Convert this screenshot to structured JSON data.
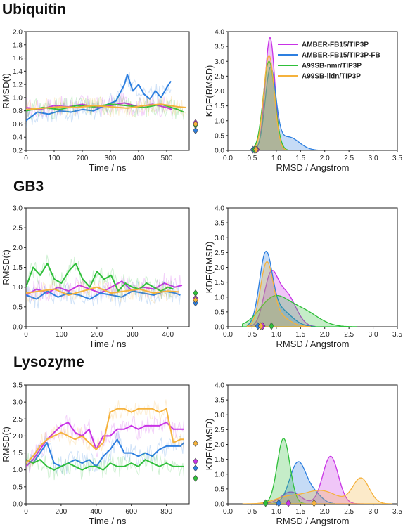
{
  "colors": {
    "AMBER-FB15/TIP3P": "#c832e6",
    "AMBER-FB15/TIP3P-FB": "#2d7fe0",
    "A99SB-nmr/TIP3P": "#2fbf3a",
    "A99SB-ildn/TIP3P": "#f5b23c"
  },
  "legend": {
    "placement": "top-right of first KDE panel",
    "entries": [
      "AMBER-FB15/TIP3P",
      "AMBER-FB15/TIP3P-FB",
      "A99SB-nmr/TIP3P",
      "A99SB-ildn/TIP3P"
    ]
  },
  "chart_data": [
    {
      "type": "line",
      "title": "Ubiquitin",
      "xlabel": "Time / ns",
      "ylabel": "RMSD(t)",
      "xlim": [
        0,
        580
      ],
      "ylim": [
        0.2,
        2.0
      ],
      "xticks": [
        "0",
        "100",
        "200",
        "300",
        "400",
        "500"
      ],
      "yticks": [
        "0.2",
        "0.4",
        "0.6",
        "0.8",
        "1.0",
        "1.2",
        "1.4",
        "1.6",
        "1.8",
        "2.0"
      ],
      "series": [
        {
          "name": "AMBER-FB15/TIP3P",
          "x": [
            0,
            50,
            100,
            150,
            200,
            250,
            300,
            350,
            400,
            450,
            500,
            520
          ],
          "y": [
            0.85,
            0.82,
            0.88,
            0.86,
            0.9,
            0.85,
            0.88,
            0.92,
            0.86,
            0.9,
            0.85,
            0.82
          ],
          "marker": 0.62
        },
        {
          "name": "AMBER-FB15/TIP3P-FB",
          "x": [
            0,
            40,
            80,
            120,
            160,
            200,
            240,
            280,
            320,
            350,
            360,
            380,
            400,
            420,
            440,
            460,
            480,
            500,
            515
          ],
          "y": [
            0.65,
            0.78,
            0.75,
            0.8,
            0.78,
            0.82,
            0.8,
            0.88,
            0.95,
            1.2,
            1.35,
            1.1,
            1.2,
            1.05,
            0.98,
            1.1,
            1.0,
            1.15,
            1.25
          ],
          "marker": 0.5
        },
        {
          "name": "A99SB-nmr/TIP3P",
          "x": [
            0,
            60,
            120,
            180,
            240,
            300,
            360,
            420,
            480,
            540,
            560
          ],
          "y": [
            0.8,
            0.85,
            0.82,
            0.88,
            0.86,
            0.9,
            0.88,
            0.85,
            0.9,
            0.82,
            0.78
          ],
          "marker": 0.58
        },
        {
          "name": "A99SB-ildn/TIP3P",
          "x": [
            0,
            60,
            120,
            180,
            240,
            300,
            360,
            420,
            480,
            540,
            570
          ],
          "y": [
            0.82,
            0.84,
            0.86,
            0.85,
            0.88,
            0.86,
            0.84,
            0.88,
            0.9,
            0.86,
            0.85
          ],
          "marker": 0.6
        }
      ]
    },
    {
      "type": "area",
      "xlabel": "RMSD / Angstrom",
      "ylabel": "KDE(RMSD)",
      "xlim": [
        0,
        3.5
      ],
      "ylim": [
        0,
        4.0
      ],
      "xticks": [
        "0.0",
        "0.5",
        "1.0",
        "1.5",
        "2.0",
        "2.5",
        "3.0",
        "3.5"
      ],
      "yticks": [
        "0.0",
        "0.5",
        "1.0",
        "1.5",
        "2.0",
        "2.5",
        "3.0",
        "3.5",
        "4.0"
      ],
      "series": [
        {
          "name": "AMBER-FB15/TIP3P",
          "components": [
            {
              "mu": 0.87,
              "sigma": 0.1,
              "amp": 3.8
            }
          ],
          "range": [
            0.55,
            1.25
          ],
          "marker": 0.6
        },
        {
          "name": "AMBER-FB15/TIP3P-FB",
          "components": [
            {
              "mu": 0.88,
              "sigma": 0.11,
              "amp": 2.7
            },
            {
              "mu": 1.25,
              "sigma": 0.22,
              "amp": 0.45
            }
          ],
          "range": [
            0.5,
            2.0
          ],
          "marker": 0.52
        },
        {
          "name": "A99SB-nmr/TIP3P",
          "components": [
            {
              "mu": 0.85,
              "sigma": 0.12,
              "amp": 3.0
            }
          ],
          "range": [
            0.5,
            1.3
          ],
          "marker": 0.55
        },
        {
          "name": "A99SB-ildn/TIP3P",
          "components": [
            {
              "mu": 0.85,
              "sigma": 0.11,
              "amp": 3.2
            }
          ],
          "range": [
            0.5,
            1.3
          ],
          "marker": 0.58
        }
      ]
    },
    {
      "type": "line",
      "title": "GB3",
      "xlabel": "Time / ns",
      "ylabel": "RMSD(t)",
      "xlim": [
        0,
        460
      ],
      "ylim": [
        0,
        3.0
      ],
      "xticks": [
        "0",
        "100",
        "200",
        "300",
        "400"
      ],
      "yticks": [
        "0.0",
        "0.5",
        "1.0",
        "1.5",
        "2.0",
        "2.5",
        "3.0"
      ],
      "series": [
        {
          "name": "AMBER-FB15/TIP3P",
          "x": [
            0,
            30,
            60,
            90,
            120,
            150,
            180,
            210,
            240,
            270,
            300,
            330,
            360,
            390,
            420,
            440
          ],
          "y": [
            0.8,
            0.95,
            0.85,
            1.0,
            0.9,
            1.05,
            0.95,
            0.85,
            1.0,
            1.15,
            0.9,
            1.0,
            0.95,
            1.1,
            1.0,
            1.05
          ],
          "marker": 0.72
        },
        {
          "name": "AMBER-FB15/TIP3P-FB",
          "x": [
            0,
            30,
            60,
            90,
            120,
            150,
            180,
            210,
            240,
            270,
            300,
            330,
            360,
            390,
            420,
            435
          ],
          "y": [
            0.8,
            0.7,
            0.9,
            0.75,
            0.85,
            0.8,
            0.7,
            0.85,
            0.8,
            0.75,
            0.9,
            0.85,
            0.8,
            0.9,
            0.85,
            0.8
          ],
          "marker": 0.6
        },
        {
          "name": "A99SB-nmr/TIP3P",
          "x": [
            0,
            20,
            40,
            60,
            80,
            100,
            120,
            140,
            160,
            180,
            200,
            220,
            240,
            260,
            280,
            300,
            320,
            340,
            360,
            380,
            400,
            415
          ],
          "y": [
            1.0,
            1.5,
            1.3,
            1.6,
            1.2,
            1.1,
            1.4,
            1.6,
            1.2,
            1.0,
            1.4,
            1.2,
            1.3,
            0.9,
            1.1,
            1.0,
            0.95,
            1.1,
            1.0,
            0.9,
            1.0,
            0.95
          ],
          "marker": 0.85
        },
        {
          "name": "A99SB-ildn/TIP3P",
          "x": [
            0,
            40,
            80,
            120,
            160,
            200,
            240,
            280,
            320,
            360,
            400,
            430
          ],
          "y": [
            0.85,
            0.9,
            0.95,
            0.8,
            0.9,
            1.0,
            0.85,
            0.9,
            0.95,
            0.85,
            0.9,
            0.88
          ],
          "marker": 0.68
        }
      ]
    },
    {
      "type": "area",
      "xlabel": "RMSD / Angstrom",
      "ylabel": "KDE(RMSD)",
      "xlim": [
        0,
        3.5
      ],
      "ylim": [
        0,
        4.0
      ],
      "xticks": [
        "0.0",
        "0.5",
        "1.0",
        "1.5",
        "2.0",
        "2.5",
        "3.0",
        "3.5"
      ],
      "yticks": [
        "0.0",
        "0.5",
        "1.0",
        "1.5",
        "2.0",
        "2.5",
        "3.0",
        "3.5",
        "4.0"
      ],
      "series": [
        {
          "name": "AMBER-FB15/TIP3P",
          "components": [
            {
              "mu": 0.88,
              "sigma": 0.14,
              "amp": 1.55
            },
            {
              "mu": 1.2,
              "sigma": 0.2,
              "amp": 1.1
            }
          ],
          "range": [
            0.4,
            1.8
          ],
          "marker": 0.72
        },
        {
          "name": "AMBER-FB15/TIP3P-FB",
          "components": [
            {
              "mu": 0.78,
              "sigma": 0.13,
              "amp": 2.2
            },
            {
              "mu": 1.05,
              "sigma": 0.25,
              "amp": 0.6
            }
          ],
          "range": [
            0.4,
            1.8
          ],
          "marker": 0.62
        },
        {
          "name": "A99SB-nmr/TIP3P",
          "components": [
            {
              "mu": 0.95,
              "sigma": 0.3,
              "amp": 0.95
            },
            {
              "mu": 1.55,
              "sigma": 0.32,
              "amp": 0.5
            }
          ],
          "range": [
            0.3,
            2.65
          ],
          "marker": 0.9
        },
        {
          "name": "A99SB-ildn/TIP3P",
          "components": [
            {
              "mu": 0.8,
              "sigma": 0.13,
              "amp": 2.0
            },
            {
              "mu": 1.05,
              "sigma": 0.22,
              "amp": 0.35
            }
          ],
          "range": [
            0.4,
            1.7
          ],
          "marker": 0.68
        }
      ]
    },
    {
      "type": "line",
      "title": "Lysozyme",
      "xlabel": "Time / ns",
      "ylabel": "RMSD(t)",
      "xlim": [
        0,
        930
      ],
      "ylim": [
        0,
        3.5
      ],
      "xticks": [
        "0",
        "200",
        "400",
        "600",
        "800"
      ],
      "yticks": [
        "0.0",
        "0.5",
        "1.0",
        "1.5",
        "2.0",
        "2.5",
        "3.0",
        "3.5"
      ],
      "series": [
        {
          "name": "AMBER-FB15/TIP3P",
          "x": [
            0,
            40,
            80,
            120,
            160,
            200,
            240,
            280,
            320,
            360,
            400,
            440,
            480,
            520,
            560,
            600,
            640,
            680,
            720,
            760,
            800,
            840,
            880,
            900
          ],
          "y": [
            1.1,
            1.3,
            1.6,
            1.9,
            2.1,
            2.3,
            2.4,
            2.1,
            2.0,
            2.2,
            1.6,
            2.0,
            2.0,
            2.2,
            2.2,
            2.3,
            2.2,
            2.3,
            2.3,
            2.3,
            2.4,
            2.2,
            2.2,
            2.2
          ],
          "marker": 1.25
        },
        {
          "name": "AMBER-FB15/TIP3P-FB",
          "x": [
            0,
            40,
            80,
            120,
            160,
            200,
            240,
            280,
            320,
            360,
            400,
            440,
            480,
            520,
            560,
            600,
            640,
            680,
            720,
            760,
            800,
            840,
            880,
            900
          ],
          "y": [
            1.3,
            1.2,
            1.5,
            1.8,
            1.2,
            1.1,
            1.2,
            1.3,
            1.2,
            1.3,
            1.1,
            1.4,
            1.6,
            1.9,
            1.5,
            1.5,
            1.4,
            1.5,
            1.4,
            1.6,
            1.7,
            1.7,
            1.7,
            1.8
          ],
          "marker": 1.05
        },
        {
          "name": "A99SB-nmr/TIP3P",
          "x": [
            0,
            40,
            80,
            120,
            160,
            200,
            240,
            280,
            320,
            360,
            400,
            440,
            480,
            520,
            560,
            600,
            640,
            680,
            720,
            760,
            800,
            840,
            880,
            900
          ],
          "y": [
            1.3,
            1.2,
            1.3,
            1.1,
            1.0,
            1.1,
            1.2,
            1.1,
            1.0,
            1.1,
            1.1,
            1.0,
            1.2,
            1.1,
            1.1,
            1.2,
            1.1,
            1.3,
            1.2,
            1.1,
            1.2,
            1.1,
            1.1,
            1.1
          ],
          "marker": 0.75
        },
        {
          "name": "A99SB-ildn/TIP3P",
          "x": [
            0,
            40,
            80,
            120,
            160,
            200,
            240,
            280,
            320,
            360,
            400,
            440,
            480,
            520,
            560,
            600,
            640,
            680,
            720,
            760,
            800,
            840,
            880,
            900
          ],
          "y": [
            1.2,
            1.4,
            1.7,
            1.9,
            2.0,
            2.1,
            2.0,
            1.9,
            2.0,
            1.8,
            1.6,
            1.8,
            2.7,
            2.8,
            2.8,
            2.7,
            2.8,
            2.8,
            2.8,
            2.7,
            2.8,
            1.8,
            1.9,
            1.9
          ],
          "marker": 1.78
        }
      ]
    },
    {
      "type": "area",
      "xlabel": "RMSD / Angstrom",
      "ylabel": "KDE(RMSD)",
      "xlim": [
        0,
        3.5
      ],
      "ylim": [
        0,
        4.0
      ],
      "xticks": [
        "0.0",
        "0.5",
        "1.0",
        "1.5",
        "2.0",
        "2.5",
        "3.0",
        "3.5"
      ],
      "yticks": [
        "0.0",
        "0.5",
        "1.0",
        "1.5",
        "2.0",
        "2.5",
        "3.0",
        "3.5",
        "4.0"
      ],
      "series": [
        {
          "name": "AMBER-FB15/TIP3P",
          "components": [
            {
              "mu": 2.12,
              "sigma": 0.16,
              "amp": 1.6
            },
            {
              "mu": 1.3,
              "sigma": 0.2,
              "amp": 0.4
            }
          ],
          "range": [
            0.8,
            2.8
          ],
          "marker": 1.25
        },
        {
          "name": "AMBER-FB15/TIP3P-FB",
          "components": [
            {
              "mu": 1.45,
              "sigma": 0.17,
              "amp": 1.4
            },
            {
              "mu": 1.8,
              "sigma": 0.15,
              "amp": 0.3
            }
          ],
          "range": [
            0.8,
            2.2
          ],
          "marker": 1.05
        },
        {
          "name": "A99SB-nmr/TIP3P",
          "components": [
            {
              "mu": 1.15,
              "sigma": 0.13,
              "amp": 2.2
            }
          ],
          "range": [
            0.7,
            1.6
          ],
          "marker": 0.78
        },
        {
          "name": "A99SB-ildn/TIP3P",
          "components": [
            {
              "mu": 2.75,
              "sigma": 0.17,
              "amp": 0.85
            },
            {
              "mu": 1.9,
              "sigma": 0.35,
              "amp": 0.45
            },
            {
              "mu": 1.2,
              "sigma": 0.25,
              "amp": 0.2
            }
          ],
          "range": [
            0.3,
            3.4
          ],
          "marker": 1.78
        }
      ]
    }
  ]
}
